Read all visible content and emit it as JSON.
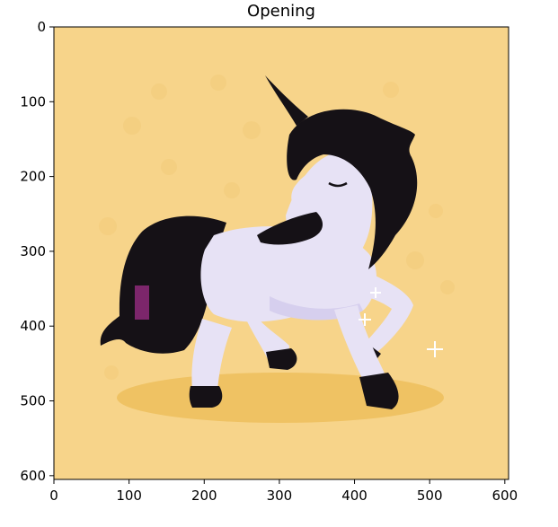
{
  "chart_data": {
    "type": "image",
    "title": "Opening",
    "xlabel": "",
    "ylabel": "",
    "xlim": [
      0,
      605
    ],
    "ylim": [
      605,
      0
    ],
    "x_ticks": [
      0,
      100,
      200,
      300,
      400,
      500,
      600
    ],
    "y_ticks": [
      0,
      100,
      200,
      300,
      400,
      500,
      600
    ],
    "grid": false,
    "legend": "none",
    "image_description_colors": {
      "background": "#f7d48a",
      "shadow": "#f0c468",
      "body": "#e7e2f5",
      "mane": "#151116",
      "tail_patch": "#8e2a7a"
    },
    "image_content": "unicorn-illustration"
  }
}
